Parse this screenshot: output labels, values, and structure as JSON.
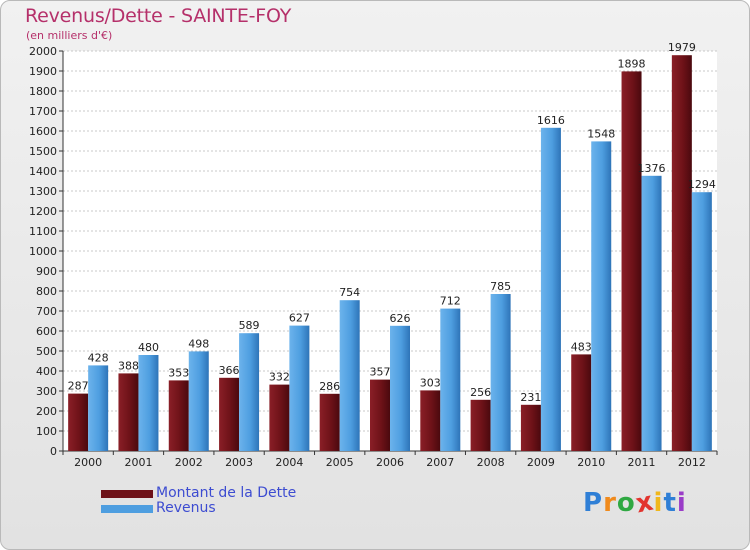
{
  "header": {
    "title": "Revenus/Dette - SAINTE-FOY",
    "subtitle": "(en milliers d'€)"
  },
  "logo": {
    "text": "Proxiti",
    "letters": [
      {
        "char": "P",
        "color": "#2f7fd6"
      },
      {
        "char": "r",
        "color": "#f08a1c"
      },
      {
        "char": "o",
        "color": "#2fa842"
      },
      {
        "char": "x",
        "color": "#e2342e"
      },
      {
        "char": "i",
        "color": "#f0b71c"
      },
      {
        "char": "t",
        "color": "#2f7fd6"
      },
      {
        "char": "i",
        "color": "#9a3cc8"
      }
    ]
  },
  "colors": {
    "dette": "#6e1218",
    "revenus": "#4e9ee0",
    "title": "#b5306a",
    "legend_text": "#3d4cd1"
  },
  "chart_data": {
    "type": "bar",
    "title": "Revenus/Dette - SAINTE-FOY",
    "subtitle": "(en milliers d'€)",
    "xlabel": "",
    "ylabel": "",
    "categories": [
      "2000",
      "2001",
      "2002",
      "2003",
      "2004",
      "2005",
      "2006",
      "2007",
      "2008",
      "2009",
      "2010",
      "2011",
      "2012"
    ],
    "series": [
      {
        "name": "Montant de la Dette",
        "color": "#6e1218",
        "values": [
          287,
          388,
          353,
          366,
          332,
          286,
          357,
          303,
          256,
          231,
          483,
          1898,
          1979
        ]
      },
      {
        "name": "Revenus",
        "color": "#4e9ee0",
        "values": [
          428,
          480,
          498,
          589,
          627,
          754,
          626,
          712,
          785,
          1616,
          1548,
          1376,
          1294
        ]
      }
    ],
    "ylim": [
      0,
      2000
    ],
    "ytick_step": 100,
    "grid": true,
    "legend": "bottom-left",
    "data_labels": true
  }
}
